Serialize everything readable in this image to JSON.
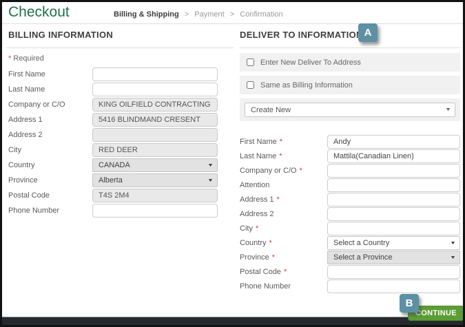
{
  "marks": {
    "required": "*"
  },
  "header": {
    "title": "Checkout",
    "breadcrumb": {
      "separator": ">",
      "items": [
        {
          "label": "Billing & Shipping",
          "current": true
        },
        {
          "label": "Payment",
          "current": false
        },
        {
          "label": "Confirmation",
          "current": false
        }
      ]
    }
  },
  "billing": {
    "heading": "BILLING INFORMATION",
    "required_note": "Required",
    "fields": [
      {
        "label": "First Name",
        "value": ""
      },
      {
        "label": "Last Name",
        "value": ""
      },
      {
        "label": "Company or C/O",
        "value": "KING OILFIELD CONTRACTING",
        "readonly": true,
        "gray": true
      },
      {
        "label": "Address 1",
        "value": "5416 BLINDMAND CRESENT",
        "readonly": true,
        "gray": true
      },
      {
        "label": "Address 2",
        "value": "",
        "readonly": true,
        "gray": true
      },
      {
        "label": "City",
        "value": "RED DEER",
        "readonly": true,
        "gray": true
      },
      {
        "label": "Country",
        "value": "CANADA",
        "control": "select",
        "gray": true,
        "readonly": true
      },
      {
        "label": "Province",
        "value": "Alberta",
        "control": "select",
        "gray": true,
        "readonly": true
      },
      {
        "label": "Postal Code",
        "value": "T4S 2M4",
        "readonly": true,
        "gray": true
      },
      {
        "label": "Phone Number",
        "value": ""
      }
    ]
  },
  "deliver": {
    "heading": "DELIVER TO INFORMATION",
    "badge_a": "A",
    "checkboxes": [
      {
        "label": "Enter New Deliver To Address",
        "checked": false
      },
      {
        "label": "Same as Billing Information",
        "checked": false
      }
    ],
    "address_select": {
      "value": "Create New"
    },
    "fields": [
      {
        "label": "First Name",
        "value": "Andy",
        "required": true
      },
      {
        "label": "Last Name",
        "value": "Mattila(Canadian Linen)",
        "required": true
      },
      {
        "label": "Company or C/O",
        "value": "",
        "required": true
      },
      {
        "label": "Attention",
        "value": ""
      },
      {
        "label": "Address 1",
        "value": "",
        "required": true
      },
      {
        "label": "Address 2",
        "value": ""
      },
      {
        "label": "City",
        "value": "",
        "required": true
      },
      {
        "label": "Country",
        "value": "Select a Country",
        "control": "select",
        "required": true
      },
      {
        "label": "Province",
        "value": "Select a Province",
        "control": "select",
        "gray": true,
        "required": true
      },
      {
        "label": "Postal Code",
        "value": "",
        "required": true
      },
      {
        "label": "Phone Number",
        "value": ""
      }
    ],
    "badge_b": "B",
    "continue_label": "CONTINUE"
  },
  "colors": {
    "title_green": "#1e7145",
    "button_green": "#5a9e34",
    "badge_blue": "#5d90a5",
    "required_red": "#cc4434"
  }
}
